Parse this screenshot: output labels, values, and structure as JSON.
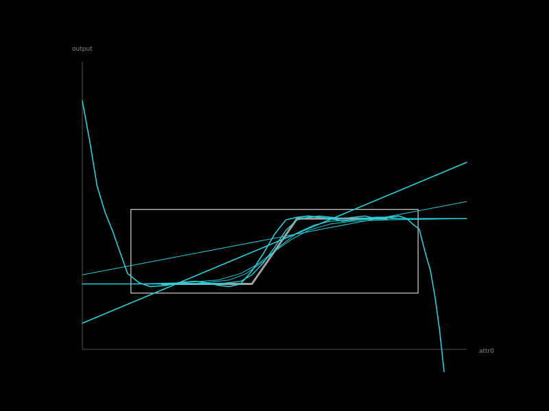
{
  "chart_data": {
    "type": "line",
    "xlabel": "attr0",
    "ylabel": "output",
    "xlim": [
      -1.2,
      2.2
    ],
    "ylim": [
      -0.7,
      1.5
    ],
    "grid": false,
    "legend": "none",
    "data_box": {
      "x": [
        -0.77,
        1.77
      ],
      "y": [
        -0.27,
        0.37
      ]
    },
    "target": {
      "color": "#a0a0a0",
      "x": [
        -0.5,
        0.3,
        0.7,
        1.5
      ],
      "y": [
        -0.2,
        -0.2,
        0.3,
        0.3
      ]
    },
    "series": [
      {
        "color": "#22d3de",
        "x": [
          -1.2,
          -1.13,
          -1.07,
          -1.0,
          -0.93,
          -0.87,
          -0.8,
          -0.7,
          -0.6,
          -0.45,
          -0.35,
          -0.2,
          -0.1,
          0.0,
          0.1,
          0.2,
          0.3,
          0.4,
          0.5,
          0.6,
          0.7,
          0.8,
          0.9,
          1.0,
          1.1,
          1.2,
          1.3,
          1.4,
          1.5,
          1.6,
          1.67,
          1.72,
          1.78,
          1.83,
          1.88,
          1.92,
          1.96,
          2.0
        ],
        "y": [
          1.2,
          0.87,
          0.55,
          0.35,
          0.2,
          0.05,
          -0.12,
          -0.19,
          -0.22,
          -0.21,
          -0.19,
          -0.18,
          -0.19,
          -0.21,
          -0.22,
          -0.2,
          -0.1,
          0.03,
          0.18,
          0.29,
          0.31,
          0.32,
          0.31,
          0.3,
          0.28,
          0.29,
          0.3,
          0.31,
          0.31,
          0.32,
          0.3,
          0.26,
          0.22,
          0.05,
          -0.1,
          -0.3,
          -0.55,
          -0.87
        ]
      },
      {
        "color": "#22d3de",
        "x": [
          -1.2,
          2.2
        ],
        "y": [
          -0.5,
          0.73
        ]
      },
      {
        "color": "#22d3de",
        "x": [
          -1.2,
          2.2
        ],
        "y": [
          -0.13,
          0.43
        ]
      },
      {
        "color": "#22d3de",
        "x": [
          -1.2,
          -0.8,
          -0.5,
          -0.3,
          0.0,
          0.2,
          0.3,
          0.4,
          0.5,
          0.6,
          0.7,
          0.8,
          0.9,
          1.0,
          1.1,
          1.2,
          1.3,
          1.4,
          1.5,
          1.6,
          1.75,
          2.2
        ],
        "y": [
          -0.2,
          -0.2,
          -0.2,
          -0.2,
          -0.2,
          -0.18,
          -0.13,
          -0.04,
          0.08,
          0.21,
          0.29,
          0.31,
          0.32,
          0.31,
          0.3,
          0.31,
          0.32,
          0.3,
          0.31,
          0.3,
          0.3,
          0.3
        ]
      },
      {
        "color": "#22d3de",
        "x": [
          -1.2,
          -0.6,
          -0.3,
          -0.1,
          0.1,
          0.25,
          0.4,
          0.55,
          0.7,
          0.85,
          1.0,
          1.2,
          1.5,
          2.2
        ],
        "y": [
          -0.2,
          -0.2,
          -0.2,
          -0.19,
          -0.17,
          -0.12,
          -0.03,
          0.09,
          0.19,
          0.25,
          0.28,
          0.29,
          0.3,
          0.3
        ]
      },
      {
        "color": "#22d3de",
        "x": [
          -1.2,
          -0.7,
          -0.3,
          0.0,
          0.2,
          0.35,
          0.5,
          0.65,
          0.8,
          1.0,
          1.2,
          1.5,
          2.2
        ],
        "y": [
          -0.2,
          -0.2,
          -0.19,
          -0.17,
          -0.12,
          -0.05,
          0.05,
          0.14,
          0.21,
          0.26,
          0.28,
          0.29,
          0.3
        ]
      }
    ]
  }
}
